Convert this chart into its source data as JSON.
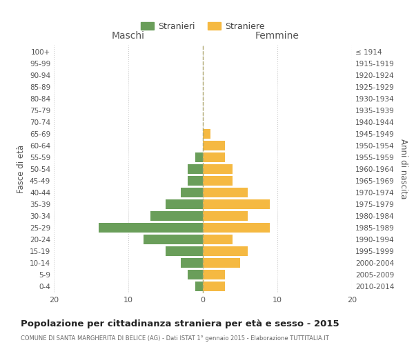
{
  "age_groups": [
    "0-4",
    "5-9",
    "10-14",
    "15-19",
    "20-24",
    "25-29",
    "30-34",
    "35-39",
    "40-44",
    "45-49",
    "50-54",
    "55-59",
    "60-64",
    "65-69",
    "70-74",
    "75-79",
    "80-84",
    "85-89",
    "90-94",
    "95-99",
    "100+"
  ],
  "birth_years": [
    "2010-2014",
    "2005-2009",
    "2000-2004",
    "1995-1999",
    "1990-1994",
    "1985-1989",
    "1980-1984",
    "1975-1979",
    "1970-1974",
    "1965-1969",
    "1960-1964",
    "1955-1959",
    "1950-1954",
    "1945-1949",
    "1940-1944",
    "1935-1939",
    "1930-1934",
    "1925-1929",
    "1920-1924",
    "1915-1919",
    "≤ 1914"
  ],
  "maschi": [
    1,
    2,
    3,
    5,
    8,
    14,
    7,
    5,
    3,
    2,
    2,
    1,
    0,
    0,
    0,
    0,
    0,
    0,
    0,
    0,
    0
  ],
  "femmine": [
    3,
    3,
    5,
    6,
    4,
    9,
    6,
    9,
    6,
    4,
    4,
    3,
    3,
    1,
    0,
    0,
    0,
    0,
    0,
    0,
    0
  ],
  "color_maschi": "#6a9e5a",
  "color_femmine": "#f5b942",
  "title": "Popolazione per cittadinanza straniera per età e sesso - 2015",
  "subtitle": "COMUNE DI SANTA MARGHERITA DI BELICE (AG) - Dati ISTAT 1° gennaio 2015 - Elaborazione TUTTITALIA.IT",
  "xlabel_left": "Maschi",
  "xlabel_right": "Femmine",
  "ylabel_left": "Fasce di età",
  "ylabel_right": "Anni di nascita",
  "legend_maschi": "Stranieri",
  "legend_femmine": "Straniere",
  "xlim": 20,
  "background_color": "#ffffff",
  "grid_color": "#cccccc"
}
